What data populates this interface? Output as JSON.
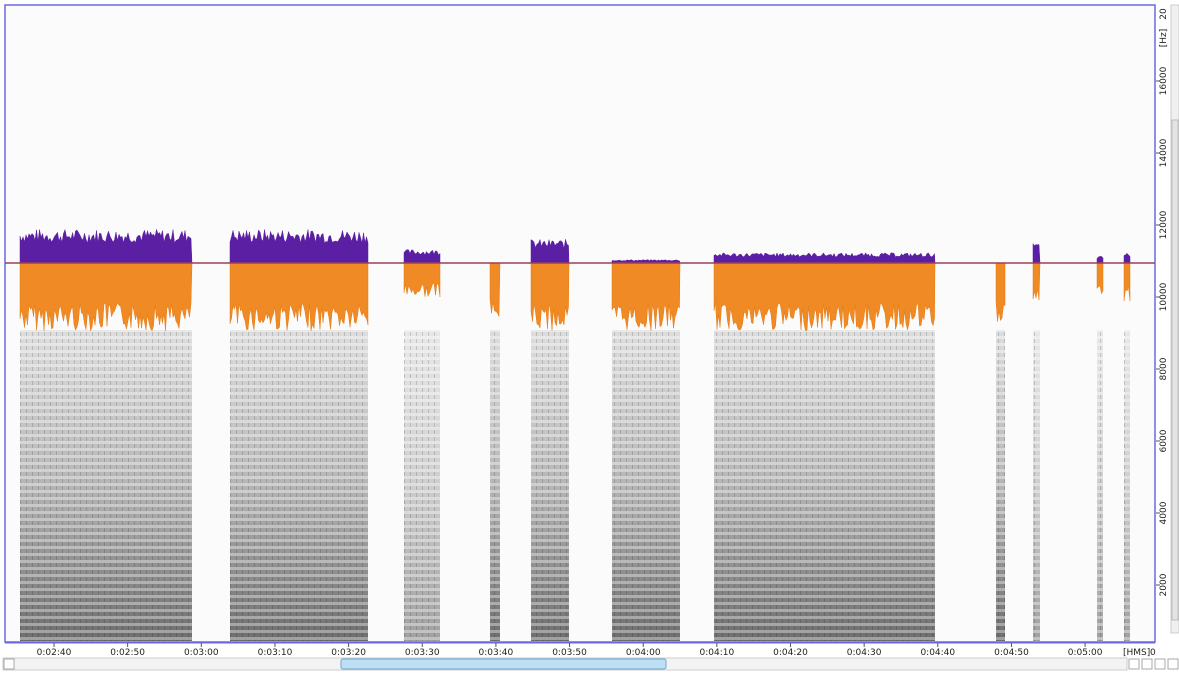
{
  "time_axis": {
    "labels": [
      "0:02:40",
      "0:02:50",
      "0:03:00",
      "0:03:10",
      "0:03:20",
      "0:03:30",
      "0:03:40",
      "0:03:50",
      "0:04:00",
      "0:04:10",
      "0:04:20",
      "0:04:30",
      "0:04:40",
      "0:04:50",
      "0:05:00"
    ],
    "unit": "[HMS]",
    "origin": "0"
  },
  "freq_axis": {
    "labels": [
      "16000",
      "14000",
      "12000",
      "10000",
      "8000",
      "6000",
      "4000",
      "2000"
    ],
    "unit": "[Hz]",
    "origin": "20"
  }
}
